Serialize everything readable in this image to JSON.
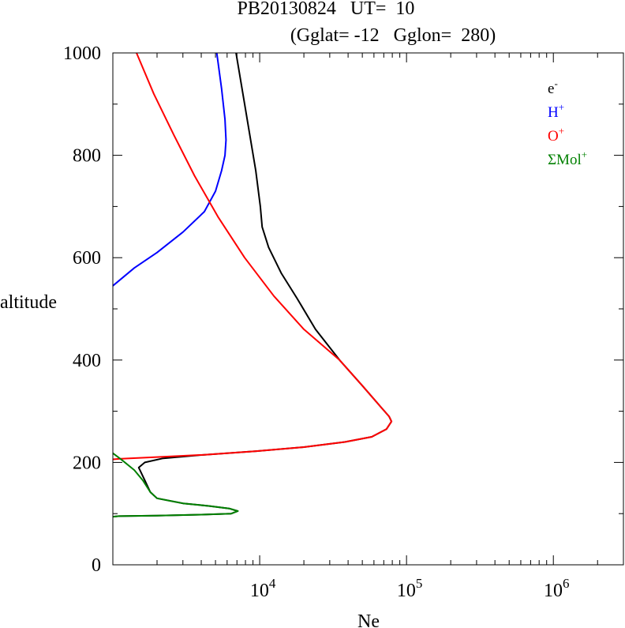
{
  "chart_data": {
    "type": "line",
    "title": "PB20130824   UT=  10",
    "subtitle": "(Gglat= -12   Gglon=  280)",
    "xlabel": "Ne",
    "ylabel": "altitude",
    "x_scale": "log",
    "xlim": [
      1000,
      3000000
    ],
    "ylim": [
      0,
      1000
    ],
    "x_tick_values": [
      10000,
      100000,
      1000000
    ],
    "x_tick_labels": [
      {
        "base": "10",
        "exp": "4"
      },
      {
        "base": "10",
        "exp": "5"
      },
      {
        "base": "10",
        "exp": "6"
      }
    ],
    "y_ticks": [
      0,
      200,
      400,
      600,
      800,
      1000
    ],
    "y_tick_labels": [
      "0",
      "200",
      "400",
      "600",
      "800",
      "1000"
    ],
    "grid": false,
    "legend_position": "top-right",
    "series": [
      {
        "key": "e",
        "name": {
          "base": "e",
          "sup": "-"
        },
        "color": "#000000",
        "points": [
          [
            6900,
            1000
          ],
          [
            7900,
            900
          ],
          [
            9400,
            770
          ],
          [
            10100,
            700
          ],
          [
            10400,
            660
          ],
          [
            11500,
            620
          ],
          [
            14000,
            570
          ],
          [
            18000,
            520
          ],
          [
            24000,
            460
          ],
          [
            35000,
            400
          ],
          [
            50000,
            350
          ],
          [
            66000,
            310
          ],
          [
            76000,
            290
          ],
          [
            79000,
            280
          ],
          [
            73000,
            265
          ],
          [
            58000,
            250
          ],
          [
            38000,
            240
          ],
          [
            20000,
            230
          ],
          [
            9500,
            222
          ],
          [
            4200,
            215
          ],
          [
            2200,
            208
          ],
          [
            1650,
            200
          ],
          [
            1500,
            190
          ],
          [
            1650,
            165
          ],
          [
            1800,
            142
          ],
          [
            2000,
            130
          ],
          [
            3000,
            120
          ],
          [
            4500,
            115
          ],
          [
            6200,
            110
          ],
          [
            7100,
            105
          ],
          [
            6400,
            100
          ],
          [
            4000,
            98
          ],
          [
            2000,
            96
          ],
          [
            1100,
            95
          ],
          [
            1000,
            94
          ]
        ]
      },
      {
        "key": "H",
        "name": {
          "base": "H",
          "sup": "+"
        },
        "color": "#0000ff",
        "points": [
          [
            5100,
            1000
          ],
          [
            5500,
            930
          ],
          [
            5800,
            870
          ],
          [
            5900,
            830
          ],
          [
            5800,
            800
          ],
          [
            5500,
            770
          ],
          [
            5000,
            730
          ],
          [
            4200,
            690
          ],
          [
            3000,
            650
          ],
          [
            2000,
            610
          ],
          [
            1400,
            580
          ],
          [
            1000,
            545
          ]
        ]
      },
      {
        "key": "O",
        "name": {
          "base": "O",
          "sup": "+"
        },
        "color": "#ff0000",
        "points": [
          [
            1450,
            1000
          ],
          [
            1900,
            920
          ],
          [
            2600,
            840
          ],
          [
            3600,
            760
          ],
          [
            5200,
            680
          ],
          [
            7900,
            600
          ],
          [
            12500,
            525
          ],
          [
            20000,
            460
          ],
          [
            35000,
            400
          ],
          [
            50000,
            350
          ],
          [
            66000,
            310
          ],
          [
            76000,
            290
          ],
          [
            79000,
            280
          ],
          [
            73000,
            265
          ],
          [
            58000,
            250
          ],
          [
            38000,
            240
          ],
          [
            20000,
            230
          ],
          [
            9500,
            222
          ],
          [
            4200,
            215
          ],
          [
            2200,
            211
          ],
          [
            1100,
            207
          ],
          [
            1000,
            206
          ]
        ]
      },
      {
        "key": "mol",
        "name": {
          "base": "ΣMol",
          "sup": "+"
        },
        "color": "#008000",
        "points": [
          [
            1000,
            218
          ],
          [
            1150,
            205
          ],
          [
            1400,
            185
          ],
          [
            1600,
            165
          ],
          [
            1800,
            142
          ],
          [
            2000,
            130
          ],
          [
            3000,
            120
          ],
          [
            4500,
            115
          ],
          [
            6200,
            110
          ],
          [
            7100,
            105
          ],
          [
            6400,
            100
          ],
          [
            4000,
            98
          ],
          [
            2000,
            96
          ],
          [
            1100,
            95
          ],
          [
            1000,
            94
          ]
        ]
      }
    ]
  }
}
